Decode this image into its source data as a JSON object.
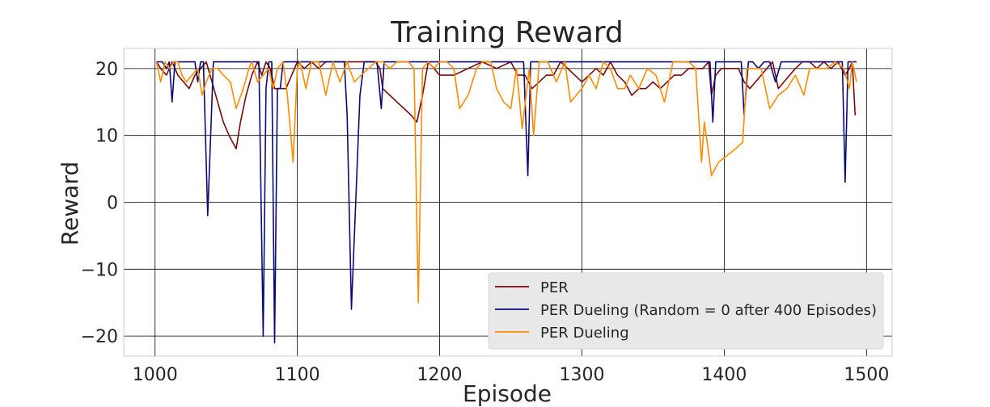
{
  "chart_data": {
    "type": "line",
    "title": "Training Reward",
    "xlabel": "Episode",
    "ylabel": "Reward",
    "xlim": [
      978,
      1518
    ],
    "ylim": [
      -23,
      23
    ],
    "xticks": [
      1000,
      1100,
      1200,
      1300,
      1400,
      1500
    ],
    "yticks": [
      -20,
      -10,
      0,
      10,
      20
    ],
    "grid": true,
    "legend_position": "lower-right",
    "series": [
      {
        "name": "PER",
        "color": "#7a0a0a",
        "x": [
          1001,
          1004,
          1008,
          1012,
          1016,
          1020,
          1024,
          1028,
          1032,
          1036,
          1040,
          1044,
          1048,
          1052,
          1057,
          1060,
          1064,
          1068,
          1072,
          1075,
          1078,
          1081,
          1084,
          1088,
          1092,
          1096,
          1100,
          1105,
          1110,
          1115,
          1120,
          1125,
          1130,
          1135,
          1140,
          1145,
          1150,
          1155,
          1158,
          1160,
          1165,
          1170,
          1175,
          1180,
          1184,
          1188,
          1192,
          1196,
          1200,
          1210,
          1220,
          1230,
          1240,
          1250,
          1255,
          1260,
          1265,
          1270,
          1275,
          1280,
          1285,
          1290,
          1295,
          1300,
          1305,
          1310,
          1315,
          1320,
          1325,
          1330,
          1335,
          1340,
          1345,
          1350,
          1355,
          1360,
          1365,
          1370,
          1375,
          1380,
          1385,
          1389,
          1391,
          1394,
          1398,
          1402,
          1406,
          1410,
          1414,
          1418,
          1422,
          1426,
          1430,
          1434,
          1438,
          1442,
          1446,
          1450,
          1455,
          1460,
          1465,
          1470,
          1475,
          1480,
          1485,
          1488,
          1490,
          1492
        ],
        "values": [
          21,
          20,
          19,
          21,
          19,
          18,
          17,
          19,
          20,
          21,
          18,
          15,
          12,
          10,
          8,
          12,
          16,
          19,
          21,
          19,
          21,
          20,
          17,
          17,
          17,
          19,
          21,
          20,
          21,
          20,
          21,
          21,
          21,
          21,
          21,
          21,
          21,
          21,
          20,
          17,
          16,
          15,
          14,
          13,
          12,
          16,
          21,
          20,
          19,
          19,
          20,
          21,
          20,
          21,
          19,
          19,
          17,
          18,
          19,
          19,
          21,
          20,
          19,
          18,
          19,
          20,
          19,
          21,
          19,
          18,
          16,
          17,
          17,
          18,
          17,
          18,
          19,
          19,
          20,
          20,
          20,
          21,
          16,
          19,
          20,
          20,
          20,
          20,
          18,
          17,
          18,
          19,
          20,
          21,
          17,
          18,
          19,
          20,
          21,
          21,
          20,
          21,
          20,
          21,
          19,
          20,
          21,
          13
        ]
      },
      {
        "name": "PER Dueling (Random = 0 after 400 Episodes)",
        "color": "#0a0a7a",
        "x": [
          1001,
          1005,
          1008,
          1010,
          1012,
          1014,
          1017,
          1021,
          1025,
          1028,
          1030,
          1032,
          1034,
          1037,
          1041,
          1045,
          1050,
          1055,
          1060,
          1065,
          1070,
          1073,
          1076,
          1078,
          1080,
          1082,
          1084,
          1086,
          1088,
          1090,
          1094,
          1098,
          1102,
          1106,
          1110,
          1115,
          1120,
          1125,
          1130,
          1133,
          1135,
          1138,
          1141,
          1144,
          1147,
          1150,
          1153,
          1156,
          1159,
          1161,
          1163,
          1166,
          1170,
          1180,
          1190,
          1200,
          1210,
          1220,
          1230,
          1240,
          1250,
          1255,
          1259,
          1262,
          1264,
          1268,
          1275,
          1285,
          1292,
          1296,
          1300,
          1310,
          1320,
          1330,
          1340,
          1350,
          1360,
          1370,
          1380,
          1385,
          1388,
          1390,
          1392,
          1394,
          1398,
          1405,
          1412,
          1414,
          1417,
          1420,
          1424,
          1428,
          1432,
          1436,
          1440,
          1445,
          1450,
          1460,
          1470,
          1480,
          1483,
          1485,
          1487,
          1489,
          1491,
          1493
        ],
        "values": [
          21,
          21,
          20,
          21,
          15,
          21,
          21,
          21,
          21,
          21,
          18,
          21,
          21,
          -2,
          21,
          21,
          21,
          21,
          21,
          21,
          21,
          21,
          -20,
          17,
          21,
          21,
          -21,
          17,
          17,
          21,
          21,
          21,
          21,
          21,
          21,
          21,
          21,
          21,
          21,
          21,
          13,
          -16,
          0,
          16,
          21,
          21,
          21,
          21,
          14,
          21,
          21,
          21,
          21,
          21,
          21,
          21,
          21,
          21,
          21,
          21,
          21,
          21,
          21,
          4,
          21,
          21,
          21,
          21,
          21,
          21,
          21,
          21,
          21,
          21,
          21,
          21,
          21,
          21,
          21,
          21,
          21,
          21,
          12,
          21,
          21,
          21,
          21,
          13,
          21,
          21,
          20,
          21,
          21,
          18,
          21,
          21,
          21,
          21,
          21,
          21,
          21,
          3,
          21,
          21,
          21,
          21
        ]
      },
      {
        "name": "PER Dueling",
        "color": "#ff8c00",
        "x": [
          1001,
          1004,
          1007,
          1010,
          1013,
          1016,
          1019,
          1022,
          1026,
          1030,
          1033,
          1036,
          1040,
          1044,
          1048,
          1053,
          1057,
          1062,
          1066,
          1068,
          1072,
          1076,
          1080,
          1083,
          1086,
          1090,
          1093,
          1097,
          1100,
          1102,
          1106,
          1110,
          1115,
          1120,
          1125,
          1130,
          1135,
          1140,
          1145,
          1150,
          1155,
          1160,
          1165,
          1170,
          1175,
          1178,
          1182,
          1185,
          1188,
          1192,
          1196,
          1200,
          1205,
          1210,
          1214,
          1220,
          1226,
          1230,
          1236,
          1240,
          1245,
          1250,
          1254,
          1258,
          1263,
          1266,
          1270,
          1276,
          1282,
          1288,
          1292,
          1296,
          1300,
          1305,
          1310,
          1315,
          1320,
          1325,
          1330,
          1334,
          1340,
          1346,
          1352,
          1358,
          1364,
          1370,
          1375,
          1380,
          1384,
          1386,
          1388,
          1391,
          1396,
          1402,
          1408,
          1413,
          1416,
          1420,
          1426,
          1432,
          1438,
          1444,
          1450,
          1456,
          1460,
          1466,
          1472,
          1478,
          1484,
          1488,
          1490,
          1493
        ],
        "values": [
          21,
          18,
          21,
          20,
          21,
          21,
          19,
          18,
          19,
          20,
          16,
          18,
          20,
          20,
          19,
          18,
          14,
          17,
          20,
          21,
          18,
          19,
          20,
          17,
          20,
          21,
          16,
          6,
          20,
          21,
          17,
          21,
          21,
          16,
          21,
          18,
          21,
          18,
          19,
          20,
          21,
          21,
          20,
          21,
          21,
          21,
          20,
          -15,
          20,
          21,
          20,
          21,
          21,
          20,
          14,
          16,
          20,
          21,
          21,
          17,
          15,
          14,
          20,
          11,
          20,
          10,
          21,
          21,
          18,
          21,
          15,
          16,
          17,
          19,
          17,
          21,
          20,
          17,
          17,
          19,
          17,
          20,
          19,
          15,
          21,
          21,
          21,
          20,
          6,
          12,
          9,
          4,
          6,
          7,
          8,
          9,
          20,
          20,
          20,
          14,
          16,
          17,
          19,
          16,
          20,
          20,
          20,
          21,
          20,
          17,
          21,
          18
        ]
      }
    ]
  }
}
